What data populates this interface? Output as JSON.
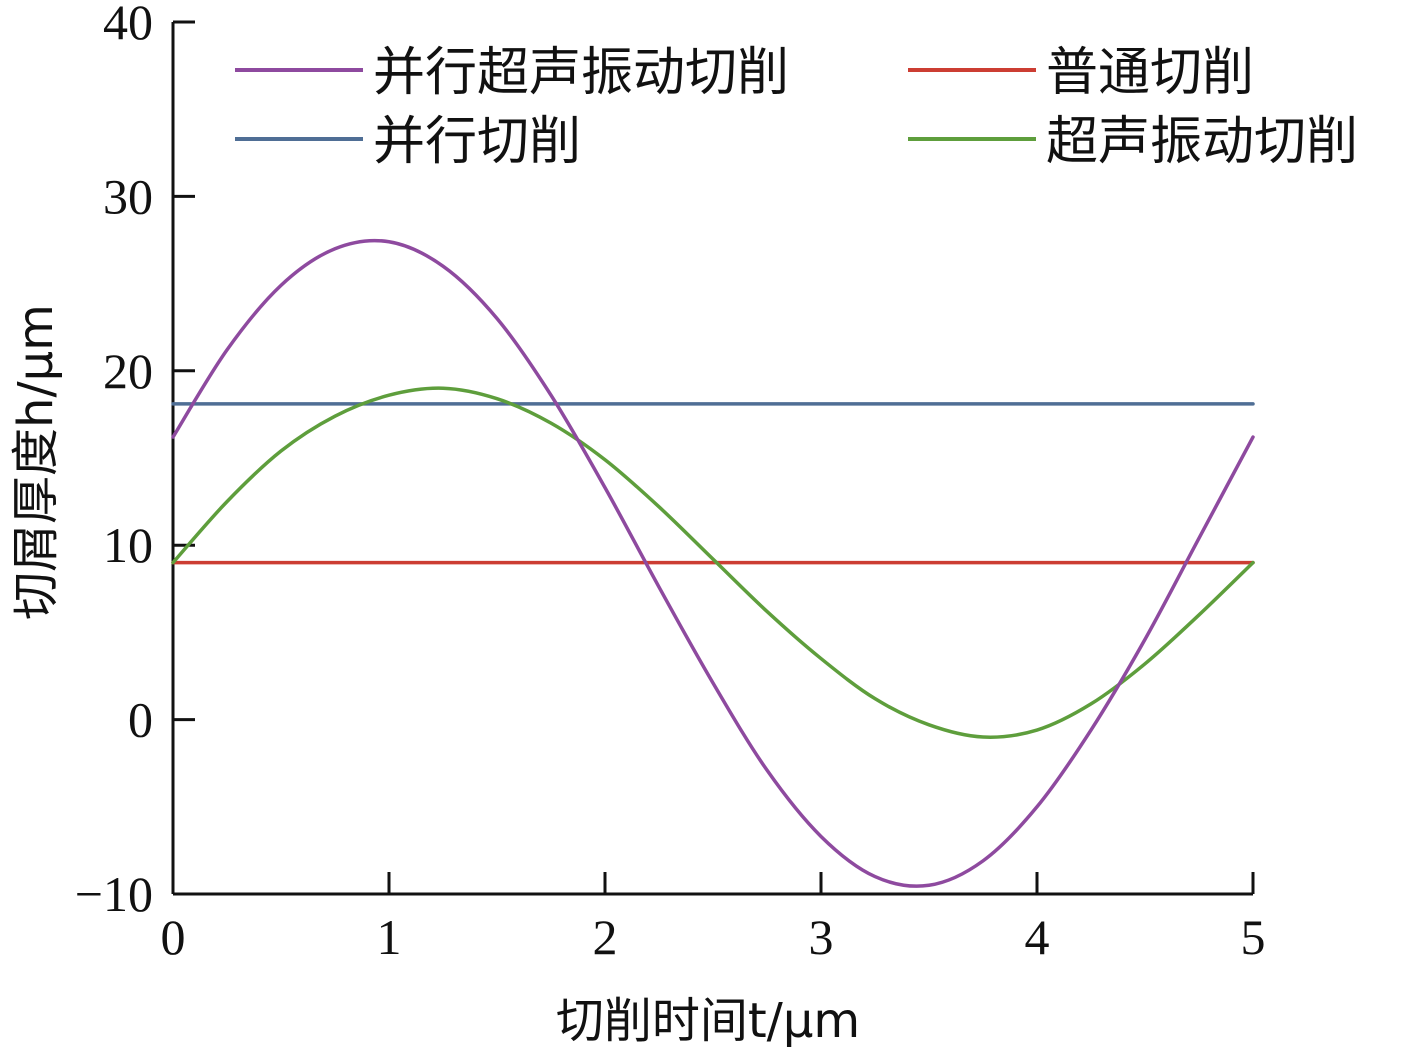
{
  "chart_data": {
    "type": "line",
    "xlabel": "切削时间t/μm",
    "ylabel": "切屑厚度h/μm",
    "xlim": [
      0,
      5
    ],
    "ylim": [
      -10,
      40
    ],
    "xticks": [
      0,
      1,
      2,
      3,
      4,
      5
    ],
    "yticks": [
      -10,
      0,
      10,
      20,
      30,
      40
    ],
    "ytick_labels": [
      "−10",
      "0",
      "10",
      "20",
      "30",
      "40"
    ],
    "grid": false,
    "legend_position": "top",
    "x": [
      0,
      0.25,
      0.5,
      0.75,
      1,
      1.25,
      1.5,
      1.75,
      2,
      2.25,
      2.5,
      2.75,
      3,
      3.25,
      3.5,
      3.75,
      4,
      4.25,
      4.5,
      4.75,
      5
    ],
    "series": [
      {
        "name": "并行超声振动切削",
        "color": "#8e4a9f",
        "values": [
          16.2,
          21.2,
          24.9,
          27.0,
          27.4,
          26.0,
          23.0,
          18.6,
          13.3,
          7.6,
          2.1,
          -2.9,
          -6.7,
          -9.0,
          -9.5,
          -8.1,
          -5.0,
          -0.6,
          4.6,
          10.4,
          16.2
        ]
      },
      {
        "name": "普通切削",
        "color": "#cc3d33",
        "values": [
          9,
          9,
          9,
          9,
          9,
          9,
          9,
          9,
          9,
          9,
          9,
          9,
          9,
          9,
          9,
          9,
          9,
          9,
          9,
          9,
          9
        ]
      },
      {
        "name": "并行切削",
        "color": "#4f6e95",
        "values": [
          18.1,
          18.1,
          18.1,
          18.1,
          18.1,
          18.1,
          18.1,
          18.1,
          18.1,
          18.1,
          18.1,
          18.1,
          18.1,
          18.1,
          18.1,
          18.1,
          18.1,
          18.1,
          18.1,
          18.1,
          18.1
        ]
      },
      {
        "name": "超声振动切削",
        "color": "#5e9e3c",
        "values": [
          9.0,
          12.5,
          15.4,
          17.4,
          18.6,
          19.0,
          18.4,
          17.0,
          14.9,
          12.2,
          9.2,
          6.2,
          3.5,
          1.2,
          -0.3,
          -1.0,
          -0.6,
          0.9,
          3.2,
          6.0,
          9.0
        ]
      }
    ]
  }
}
